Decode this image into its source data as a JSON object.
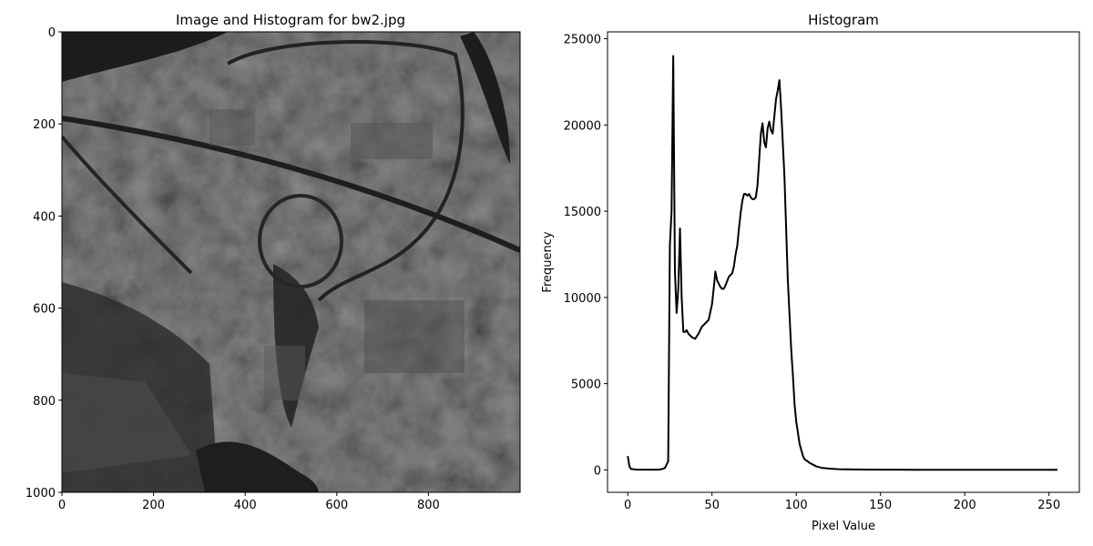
{
  "colors": {
    "line": "#000000",
    "axes": "#000000",
    "background": "#ffffff",
    "image_base": "#3c3c3c"
  },
  "chart_data": [
    {
      "type": "image",
      "title": "Image and Histogram for bw2.jpg",
      "xlim": [
        0,
        1000
      ],
      "ylim": [
        1000,
        0
      ],
      "xticks": [
        0,
        200,
        400,
        600,
        800
      ],
      "yticks": [
        0,
        200,
        400,
        600,
        800,
        1000
      ],
      "grid": false
    },
    {
      "type": "line",
      "title": "Histogram",
      "xlabel": "Pixel Value",
      "ylabel": "Frequency",
      "xlim": [
        -12,
        268
      ],
      "ylim": [
        -1300,
        25400
      ],
      "xticks": [
        0,
        50,
        100,
        150,
        200,
        250
      ],
      "yticks": [
        0,
        5000,
        10000,
        15000,
        20000,
        25000
      ],
      "grid": false,
      "series": [
        {
          "x": [
            0,
            1,
            2,
            5,
            10,
            15,
            18,
            20,
            22,
            23,
            24,
            25,
            26,
            27,
            28,
            29,
            30,
            31,
            32,
            33,
            34,
            35,
            36,
            38,
            40,
            42,
            44,
            46,
            48,
            50,
            51,
            52,
            53,
            54,
            55,
            56,
            57,
            58,
            60,
            62,
            63,
            64,
            65,
            66,
            67,
            68,
            69,
            70,
            71,
            72,
            73,
            74,
            75,
            76,
            77,
            78,
            79,
            80,
            81,
            82,
            83,
            84,
            85,
            86,
            87,
            88,
            89,
            90,
            91,
            92,
            93,
            94,
            95,
            96,
            97,
            98,
            99,
            100,
            102,
            104,
            105,
            106,
            108,
            110,
            112,
            115,
            120,
            125,
            130,
            140,
            150,
            160,
            170,
            180,
            200,
            220,
            240,
            255
          ],
          "y": [
            800,
            200,
            50,
            20,
            10,
            10,
            15,
            40,
            100,
            300,
            500,
            13000,
            15000,
            24000,
            11500,
            9100,
            10500,
            14000,
            10000,
            8000,
            8000,
            8100,
            7900,
            7700,
            7600,
            7900,
            8300,
            8500,
            8700,
            9600,
            10500,
            11500,
            11000,
            10800,
            10600,
            10500,
            10500,
            10700,
            11200,
            11400,
            11800,
            12500,
            13000,
            14000,
            14900,
            15600,
            16000,
            16000,
            15900,
            16000,
            15800,
            15700,
            15700,
            15800,
            16500,
            18000,
            19500,
            20100,
            19000,
            18700,
            19800,
            20200,
            19700,
            19500,
            20500,
            21500,
            22000,
            22600,
            21000,
            19000,
            17000,
            14000,
            11000,
            9000,
            7000,
            5500,
            3800,
            2800,
            1500,
            800,
            600,
            550,
            400,
            300,
            200,
            120,
            70,
            40,
            30,
            20,
            15,
            10,
            8,
            6,
            5,
            5,
            5,
            5
          ]
        }
      ]
    }
  ]
}
